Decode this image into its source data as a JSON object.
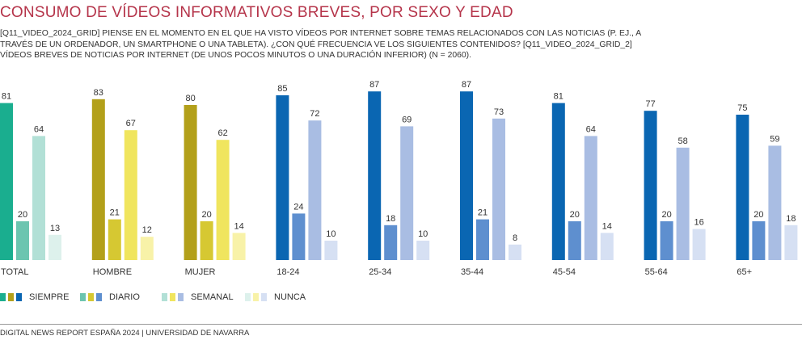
{
  "title": "CONSUMO DE VÍDEOS INFORMATIVOS BREVES, POR SEXO Y EDAD",
  "subtitle": "[Q11_VIDEO_2024_GRID] PIENSE EN EL MOMENTO EN EL QUE HA VISTO VÍDEOS POR INTERNET SOBRE TEMAS RELACIONADOS CON LAS NOTICIAS (P. EJ., A TRAVÉS DE UN ORDENADOR, UN SMARTPHONE O UNA TABLETA). ¿CON QUÉ FRECUENCIA VE LOS SIGUIENTES CONTENIDOS? [Q11_VIDEO_2024_GRID_2] VÍDEOS BREVES DE NOTICIAS POR INTERNET (DE UNOS POCOS MINUTOS O UNA DURACIÓN INFERIOR)  (N = 2060).",
  "footer": "DIGITAL NEWS REPORT ESPAÑA 2024 | UNIVERSIDAD DE NAVARRA",
  "chart_data": {
    "type": "bar",
    "categories": [
      "TOTAL",
      "HOMBRE",
      "MUJER",
      "18-24",
      "25-34",
      "35-44",
      "45-54",
      "55-64",
      "65+"
    ],
    "series": [
      {
        "name": "SIEMPRE",
        "values": [
          81,
          83,
          80,
          85,
          87,
          87,
          81,
          77,
          75
        ]
      },
      {
        "name": "DIARIO",
        "values": [
          20,
          21,
          20,
          24,
          18,
          21,
          20,
          20,
          20
        ]
      },
      {
        "name": "SEMANAL",
        "values": [
          64,
          67,
          62,
          72,
          69,
          73,
          64,
          58,
          59
        ]
      },
      {
        "name": "NUNCA",
        "values": [
          13,
          12,
          14,
          10,
          10,
          8,
          14,
          16,
          18
        ]
      }
    ],
    "ylim": [
      0,
      100
    ],
    "grid": false,
    "legend": "bottom-left",
    "palettes": {
      "total": [
        "#1aae8f",
        "#6cc5b0",
        "#b2e0d6",
        "#ddf1ec"
      ],
      "sexo": [
        "#b3a01a",
        "#d6c832",
        "#f0e55e",
        "#f8f2a8"
      ],
      "edad": [
        "#0a66b2",
        "#5e8fcf",
        "#a9bde3",
        "#d6e0f3"
      ]
    },
    "group_palettes": [
      "total",
      "sexo",
      "sexo",
      "edad",
      "edad",
      "edad",
      "edad",
      "edad",
      "edad"
    ]
  }
}
